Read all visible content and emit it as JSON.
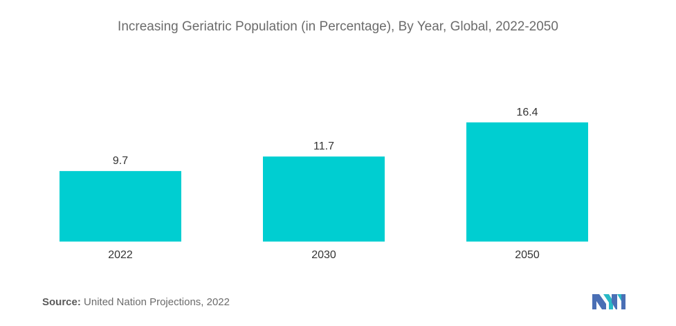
{
  "chart_data": {
    "type": "bar",
    "title": "Increasing Geriatric Population (in Percentage), By Year, Global, 2022-2050",
    "categories": [
      "2022",
      "2030",
      "2050"
    ],
    "values": [
      9.7,
      11.7,
      16.4
    ],
    "value_labels": [
      "9.7",
      "11.7",
      "16.4"
    ],
    "xlabel": "",
    "ylabel": "",
    "ylim": [
      0,
      18.0
    ],
    "grid": false,
    "bar_color": "#00ced1"
  },
  "source": {
    "label": "Source:",
    "text": "United Nation Projections, 2022"
  },
  "logo": {
    "icon": "mordor-intelligence-logo-icon",
    "colors": [
      "#4a6fb5",
      "#29b9c6"
    ]
  }
}
